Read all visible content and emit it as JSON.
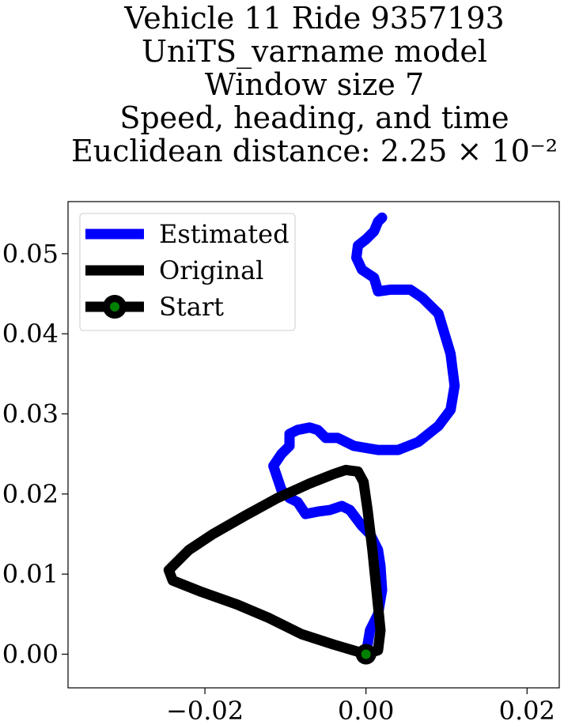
{
  "title_lines": [
    "Vehicle 11 Ride 9357193",
    "UniTS_varname model",
    "Window size 7",
    "Speed, heading, and time",
    "Euclidean distance: 2.25 × 10⁻²"
  ],
  "chart_data": {
    "type": "line",
    "title": "Vehicle 11 Ride 9357193 / UniTS_varname model / Window size 7 / Speed, heading, and time / Euclidean distance: 2.25 × 10⁻²",
    "xlim": [
      -0.037,
      0.024
    ],
    "ylim": [
      -0.0042,
      0.0565
    ],
    "xticks": [
      -0.02,
      0.0,
      0.02
    ],
    "xtick_labels": [
      "−0.02",
      "0.00",
      "0.02"
    ],
    "yticks": [
      0.0,
      0.01,
      0.02,
      0.03,
      0.04,
      0.05
    ],
    "ytick_labels": [
      "0.00",
      "0.01",
      "0.02",
      "0.03",
      "0.04",
      "0.05"
    ],
    "grid": false,
    "legend_position": "top-left",
    "legend": [
      "Estimated",
      "Original",
      "Start"
    ],
    "series": [
      {
        "name": "Estimated",
        "color": "#0000ff",
        "points": [
          [
            0.0,
            0.0
          ],
          [
            0.0005,
            0.003
          ],
          [
            0.0015,
            0.005
          ],
          [
            0.002,
            0.008
          ],
          [
            0.0018,
            0.011
          ],
          [
            0.0015,
            0.013
          ],
          [
            0.0005,
            0.015
          ],
          [
            -0.0005,
            0.016
          ],
          [
            -0.002,
            0.018
          ],
          [
            -0.003,
            0.0185
          ],
          [
            -0.0045,
            0.018
          ],
          [
            -0.006,
            0.0178
          ],
          [
            -0.0075,
            0.0175
          ],
          [
            -0.0085,
            0.019
          ],
          [
            -0.0095,
            0.0195
          ],
          [
            -0.0105,
            0.0205
          ],
          [
            -0.011,
            0.022
          ],
          [
            -0.0115,
            0.0235
          ],
          [
            -0.0105,
            0.025
          ],
          [
            -0.0095,
            0.026
          ],
          [
            -0.0095,
            0.0275
          ],
          [
            -0.0085,
            0.028
          ],
          [
            -0.007,
            0.0283
          ],
          [
            -0.006,
            0.028
          ],
          [
            -0.005,
            0.027
          ],
          [
            -0.0035,
            0.027
          ],
          [
            -0.0015,
            0.026
          ],
          [
            0.0015,
            0.0255
          ],
          [
            0.004,
            0.0255
          ],
          [
            0.0065,
            0.0265
          ],
          [
            0.009,
            0.0285
          ],
          [
            0.0105,
            0.0305
          ],
          [
            0.011,
            0.0335
          ],
          [
            0.0105,
            0.0375
          ],
          [
            0.009,
            0.0425
          ],
          [
            0.007,
            0.0445
          ],
          [
            0.0055,
            0.0455
          ],
          [
            0.003,
            0.0455
          ],
          [
            0.0015,
            0.0453
          ],
          [
            0.001,
            0.047
          ],
          [
            -0.0005,
            0.048
          ],
          [
            -0.0012,
            0.0495
          ],
          [
            -0.001,
            0.051
          ],
          [
            0.0,
            0.0518
          ],
          [
            0.001,
            0.0528
          ],
          [
            0.0015,
            0.054
          ],
          [
            0.002,
            0.0545
          ]
        ]
      },
      {
        "name": "Original",
        "color": "#000000",
        "points": [
          [
            0.0,
            0.0
          ],
          [
            -0.004,
            0.0012
          ],
          [
            -0.008,
            0.0025
          ],
          [
            -0.012,
            0.0045
          ],
          [
            -0.016,
            0.0062
          ],
          [
            -0.0205,
            0.0078
          ],
          [
            -0.024,
            0.0092
          ],
          [
            -0.0245,
            0.0105
          ],
          [
            -0.022,
            0.013
          ],
          [
            -0.019,
            0.015
          ],
          [
            -0.015,
            0.0173
          ],
          [
            -0.011,
            0.0195
          ],
          [
            -0.007,
            0.0213
          ],
          [
            -0.004,
            0.0225
          ],
          [
            -0.0025,
            0.023
          ],
          [
            -0.001,
            0.0228
          ],
          [
            -0.0003,
            0.0215
          ],
          [
            0.0002,
            0.018
          ],
          [
            0.0008,
            0.013
          ],
          [
            0.0013,
            0.008
          ],
          [
            0.0018,
            0.003
          ],
          [
            0.0015,
            0.0005
          ],
          [
            0.0,
            0.0
          ]
        ]
      }
    ],
    "start_point": {
      "x": 0.0,
      "y": 0.0,
      "fill_color": "#008000",
      "edge_color": "#000000"
    }
  }
}
